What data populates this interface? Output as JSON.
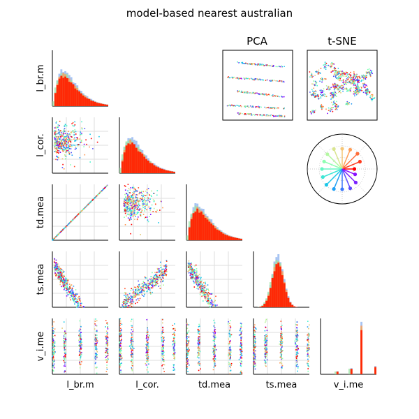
{
  "title": "model-based nearest australian",
  "variables": [
    "l_br.m",
    "l_cor.",
    "td.mea",
    "ts.mea",
    "v_i.me"
  ],
  "panel_titles": {
    "pca": "PCA",
    "tsne": "t-SNE"
  },
  "colors": {
    "palette": [
      "#8000ff",
      "#4f4dfb",
      "#1f96f3",
      "#16c8e8",
      "#4df3ce",
      "#80ffb4",
      "#b2f396",
      "#e2c875",
      "#ff954e",
      "#ff4f26",
      "#ff0000"
    ],
    "hist_highlight": "#ff2200"
  },
  "chart_data": [
    {
      "type": "scatter-matrix",
      "variables": [
        "l_br.m",
        "l_cor.",
        "td.mea",
        "ts.mea",
        "v_i.me"
      ],
      "diagonal": "histogram",
      "lower": "scatter",
      "grid": true,
      "relationships": {
        "td.mea vs l_br.m": "near-perfect positive linear",
        "ts.mea vs l_br.m": "negative",
        "ts.mea vs l_cor.": "positive",
        "ts.mea vs td.mea": "negative",
        "l_cor. vs l_br.m": "weak negative",
        "td.mea vs l_cor.": "weak negative"
      },
      "histogram_shapes": {
        "l_br.m": "right-skewed",
        "l_cor.": "right-skewed",
        "td.mea": "right-skewed",
        "ts.mea": "approximately normal",
        "v_i.me": "discrete spikes at five levels"
      }
    },
    {
      "type": "scatter",
      "title": "PCA",
      "description": "points arranged in five parallel slightly descending bands"
    },
    {
      "type": "scatter",
      "title": "t-SNE",
      "description": "many small clusters filling the panel"
    },
    {
      "type": "polar-stem",
      "n_spokes": 16,
      "colors": "rainbow gradient from violet to red"
    }
  ]
}
